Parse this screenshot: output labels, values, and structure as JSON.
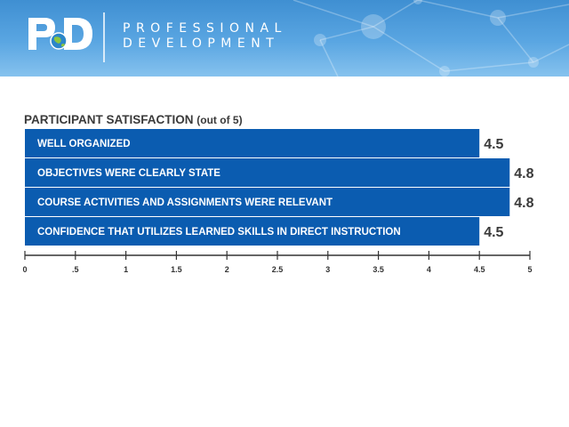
{
  "header": {
    "logo_text": "PD",
    "brand_line1": "PROFESSIONAL",
    "brand_line2": "DEVELOPMENT"
  },
  "colors": {
    "bar": "#0b5cb0",
    "banner": "#4a9ad8",
    "text": "#3a3a3a"
  },
  "chart_data": {
    "type": "bar",
    "orientation": "horizontal",
    "title": "PARTICIPANT SATISFACTION",
    "subtitle": "(out of 5)",
    "categories": [
      "WELL ORGANIZED",
      "OBJECTIVES WERE CLEARLY STATE",
      "COURSE ACTIVITIES AND ASSIGNMENTS WERE RELEVANT",
      "CONFIDENCE THAT UTILIZES LEARNED SKILLS IN DIRECT INSTRUCTION"
    ],
    "values": [
      4.5,
      4.8,
      4.8,
      4.5
    ],
    "value_labels": [
      "4.5",
      "4.8",
      "4.8",
      "4.5"
    ],
    "xlim": [
      0,
      5
    ],
    "ticks": [
      0,
      0.5,
      1,
      1.5,
      2,
      2.5,
      3,
      3.5,
      4,
      4.5,
      5
    ],
    "tick_labels": [
      "0",
      ".5",
      "1",
      "1.5",
      "2",
      "2.5",
      "3",
      "3.5",
      "4",
      "4.5",
      "5"
    ],
    "grid": false
  }
}
